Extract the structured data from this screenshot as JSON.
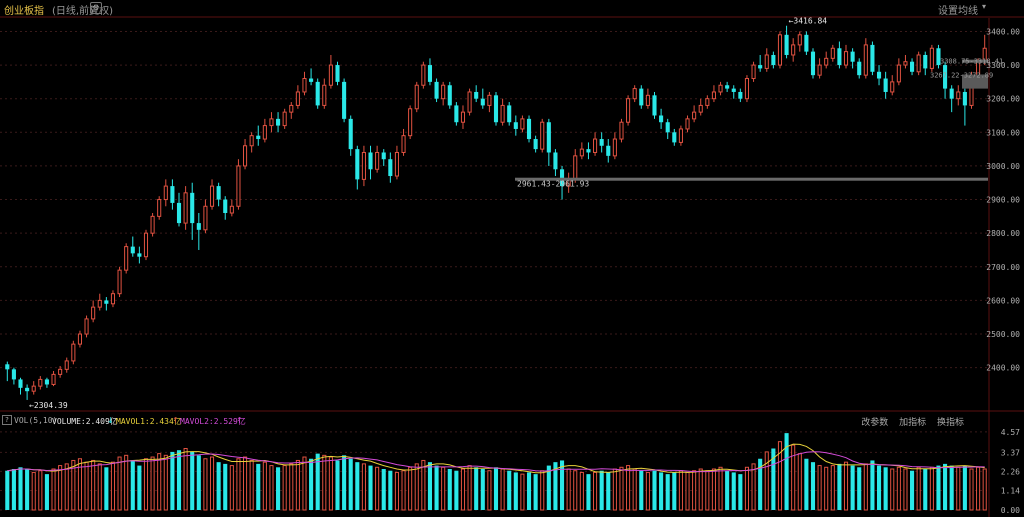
{
  "header": {
    "title": "创业板指",
    "subtitle": "(日线,前复权)",
    "ma_settings_label": "设置均线",
    "dropdown_glyph": "▾",
    "gear_glyph": "⚙"
  },
  "price_axis": {
    "ticks": [
      "3400.00",
      "3300.00",
      "3200.00",
      "3100.00",
      "3000.00",
      "2900.00",
      "2800.00",
      "2700.00",
      "2600.00",
      "2500.00",
      "2400.00"
    ]
  },
  "annotations": {
    "high": "3416.84",
    "low": "2304.39",
    "range_mid": "2961.43-2961.93",
    "range_right_1": "3308.75-3318.41",
    "range_right_2": "3272.89",
    "range_right_2_prefix": "3267.22"
  },
  "volume_panel": {
    "qmark": "?",
    "label": "VOL(5,10)",
    "volume_text": "VOLUME:2.409亿",
    "volume_arrow": "↓",
    "mavol1_text": "MAVOL1:2.434亿",
    "mavol1_arrow": "↑",
    "mavol2_text": "MAVOL2:2.529亿",
    "mavol2_arrow": "↑",
    "right_buttons": [
      "改参数",
      "加指标",
      "换指标"
    ],
    "ticks": [
      "4.57",
      "3.37",
      "2.26",
      "1.14",
      "0.00"
    ]
  },
  "colors": {
    "up": "#e15241",
    "down": "#2ae8e8",
    "mavol1": "#e8d23a",
    "mavol2": "#d24bd8",
    "grid": "#3a1a1a",
    "title": "#e8c44a"
  },
  "chart_data": {
    "type": "candlestick",
    "ylim": [
      2280,
      3440
    ],
    "vol_ylim": [
      0,
      4.8
    ],
    "candles": [
      [
        2410,
        2395,
        2418,
        2360,
        2.3
      ],
      [
        2395,
        2365,
        2400,
        2350,
        2.4
      ],
      [
        2365,
        2340,
        2370,
        2320,
        2.5
      ],
      [
        2340,
        2330,
        2350,
        2304,
        2.4
      ],
      [
        2330,
        2345,
        2360,
        2320,
        2.2
      ],
      [
        2345,
        2365,
        2375,
        2335,
        2.3
      ],
      [
        2365,
        2350,
        2370,
        2340,
        2.1
      ],
      [
        2350,
        2380,
        2390,
        2345,
        2.4
      ],
      [
        2380,
        2395,
        2405,
        2370,
        2.6
      ],
      [
        2395,
        2420,
        2430,
        2385,
        2.7
      ],
      [
        2420,
        2470,
        2480,
        2410,
        2.9
      ],
      [
        2470,
        2500,
        2510,
        2460,
        3.0
      ],
      [
        2500,
        2545,
        2555,
        2490,
        2.8
      ],
      [
        2545,
        2580,
        2600,
        2535,
        2.9
      ],
      [
        2580,
        2600,
        2620,
        2570,
        2.7
      ],
      [
        2600,
        2590,
        2610,
        2570,
        2.5
      ],
      [
        2590,
        2620,
        2630,
        2580,
        2.8
      ],
      [
        2620,
        2690,
        2700,
        2610,
        3.1
      ],
      [
        2690,
        2760,
        2770,
        2680,
        3.2
      ],
      [
        2760,
        2740,
        2790,
        2730,
        2.9
      ],
      [
        2740,
        2730,
        2760,
        2710,
        2.6
      ],
      [
        2730,
        2800,
        2810,
        2720,
        3.0
      ],
      [
        2800,
        2850,
        2860,
        2790,
        3.1
      ],
      [
        2850,
        2900,
        2910,
        2840,
        3.3
      ],
      [
        2900,
        2940,
        2960,
        2880,
        3.2
      ],
      [
        2940,
        2890,
        2960,
        2870,
        3.4
      ],
      [
        2890,
        2830,
        2920,
        2820,
        3.5
      ],
      [
        2830,
        2920,
        2940,
        2810,
        3.6
      ],
      [
        2920,
        2830,
        2950,
        2780,
        3.4
      ],
      [
        2830,
        2810,
        2860,
        2750,
        3.2
      ],
      [
        2810,
        2880,
        2900,
        2800,
        3.0
      ],
      [
        2880,
        2940,
        2960,
        2870,
        3.1
      ],
      [
        2940,
        2900,
        2950,
        2880,
        2.8
      ],
      [
        2900,
        2860,
        2910,
        2840,
        2.7
      ],
      [
        2860,
        2880,
        2900,
        2850,
        2.6
      ],
      [
        2880,
        3000,
        3020,
        2870,
        3.0
      ],
      [
        3000,
        3060,
        3080,
        2990,
        3.1
      ],
      [
        3060,
        3090,
        3100,
        3040,
        2.9
      ],
      [
        3090,
        3080,
        3120,
        3060,
        2.7
      ],
      [
        3080,
        3120,
        3140,
        3070,
        2.8
      ],
      [
        3120,
        3140,
        3160,
        3100,
        2.6
      ],
      [
        3140,
        3120,
        3160,
        3100,
        2.5
      ],
      [
        3120,
        3160,
        3170,
        3110,
        2.6
      ],
      [
        3160,
        3180,
        3190,
        3140,
        2.7
      ],
      [
        3180,
        3220,
        3240,
        3170,
        2.9
      ],
      [
        3220,
        3260,
        3280,
        3210,
        3.1
      ],
      [
        3260,
        3250,
        3290,
        3240,
        3.0
      ],
      [
        3250,
        3180,
        3260,
        3170,
        3.3
      ],
      [
        3180,
        3240,
        3260,
        3170,
        3.2
      ],
      [
        3240,
        3300,
        3330,
        3230,
        3.1
      ],
      [
        3300,
        3250,
        3310,
        3240,
        2.9
      ],
      [
        3250,
        3140,
        3260,
        3130,
        3.2
      ],
      [
        3140,
        3050,
        3150,
        3030,
        3.0
      ],
      [
        3050,
        2960,
        3060,
        2930,
        2.8
      ],
      [
        2960,
        3040,
        3060,
        2940,
        2.7
      ],
      [
        3040,
        2990,
        3060,
        2960,
        2.6
      ],
      [
        2990,
        3040,
        3060,
        2980,
        2.5
      ],
      [
        3040,
        3020,
        3050,
        3000,
        2.4
      ],
      [
        3020,
        2970,
        3040,
        2950,
        2.3
      ],
      [
        2970,
        3040,
        3060,
        2960,
        2.2
      ],
      [
        3040,
        3090,
        3110,
        3030,
        2.3
      ],
      [
        3090,
        3170,
        3180,
        3080,
        2.5
      ],
      [
        3170,
        3240,
        3250,
        3160,
        2.7
      ],
      [
        3240,
        3300,
        3310,
        3230,
        2.9
      ],
      [
        3300,
        3250,
        3320,
        3240,
        2.8
      ],
      [
        3250,
        3200,
        3260,
        3190,
        2.6
      ],
      [
        3200,
        3240,
        3250,
        3180,
        2.5
      ],
      [
        3240,
        3180,
        3250,
        3170,
        2.4
      ],
      [
        3180,
        3130,
        3190,
        3120,
        2.3
      ],
      [
        3130,
        3160,
        3180,
        3110,
        2.4
      ],
      [
        3160,
        3220,
        3230,
        3150,
        2.6
      ],
      [
        3220,
        3200,
        3240,
        3190,
        2.5
      ],
      [
        3200,
        3180,
        3230,
        3170,
        2.4
      ],
      [
        3180,
        3210,
        3220,
        3160,
        2.3
      ],
      [
        3210,
        3130,
        3220,
        3120,
        2.5
      ],
      [
        3130,
        3180,
        3200,
        3120,
        2.4
      ],
      [
        3180,
        3130,
        3190,
        3120,
        2.3
      ],
      [
        3130,
        3110,
        3150,
        3090,
        2.2
      ],
      [
        3110,
        3140,
        3150,
        3100,
        2.1
      ],
      [
        3140,
        3080,
        3150,
        3070,
        2.2
      ],
      [
        3080,
        3050,
        3090,
        3040,
        2.1
      ],
      [
        3050,
        3130,
        3140,
        3040,
        2.3
      ],
      [
        3130,
        3040,
        3140,
        3000,
        2.6
      ],
      [
        3040,
        2990,
        3050,
        2970,
        2.8
      ],
      [
        2990,
        2940,
        3000,
        2900,
        2.9
      ],
      [
        2940,
        2960,
        2980,
        2920,
        2.4
      ],
      [
        2960,
        3030,
        3050,
        2950,
        2.3
      ],
      [
        3030,
        3050,
        3070,
        3020,
        2.2
      ],
      [
        3050,
        3040,
        3070,
        3020,
        2.1
      ],
      [
        3040,
        3080,
        3100,
        3030,
        2.2
      ],
      [
        3080,
        3060,
        3100,
        3040,
        2.3
      ],
      [
        3060,
        3030,
        3080,
        3010,
        2.2
      ],
      [
        3030,
        3080,
        3100,
        3020,
        2.4
      ],
      [
        3080,
        3130,
        3140,
        3070,
        2.5
      ],
      [
        3130,
        3200,
        3210,
        3120,
        2.6
      ],
      [
        3200,
        3230,
        3240,
        3190,
        2.4
      ],
      [
        3230,
        3180,
        3240,
        3170,
        2.3
      ],
      [
        3180,
        3210,
        3230,
        3170,
        2.2
      ],
      [
        3210,
        3150,
        3220,
        3140,
        2.3
      ],
      [
        3150,
        3130,
        3170,
        3110,
        2.2
      ],
      [
        3130,
        3100,
        3140,
        3080,
        2.1
      ],
      [
        3100,
        3070,
        3110,
        3060,
        2.2
      ],
      [
        3070,
        3110,
        3120,
        3060,
        2.3
      ],
      [
        3110,
        3140,
        3150,
        3100,
        2.2
      ],
      [
        3140,
        3160,
        3180,
        3130,
        2.3
      ],
      [
        3160,
        3180,
        3200,
        3150,
        2.4
      ],
      [
        3180,
        3200,
        3210,
        3170,
        2.3
      ],
      [
        3200,
        3220,
        3240,
        3190,
        2.4
      ],
      [
        3220,
        3240,
        3250,
        3210,
        2.5
      ],
      [
        3240,
        3230,
        3250,
        3220,
        2.3
      ],
      [
        3230,
        3220,
        3240,
        3200,
        2.2
      ],
      [
        3220,
        3200,
        3230,
        3190,
        2.1
      ],
      [
        3200,
        3260,
        3270,
        3190,
        2.5
      ],
      [
        3260,
        3300,
        3310,
        3250,
        2.7
      ],
      [
        3300,
        3290,
        3330,
        3280,
        3.0
      ],
      [
        3290,
        3330,
        3350,
        3280,
        3.4
      ],
      [
        3330,
        3300,
        3340,
        3290,
        3.6
      ],
      [
        3300,
        3390,
        3400,
        3290,
        4.0
      ],
      [
        3390,
        3330,
        3417,
        3320,
        4.5
      ],
      [
        3330,
        3360,
        3380,
        3310,
        3.8
      ],
      [
        3360,
        3390,
        3400,
        3340,
        3.3
      ],
      [
        3390,
        3340,
        3400,
        3330,
        3.0
      ],
      [
        3340,
        3270,
        3350,
        3260,
        2.8
      ],
      [
        3270,
        3300,
        3320,
        3260,
        2.6
      ],
      [
        3300,
        3320,
        3340,
        3290,
        2.5
      ],
      [
        3320,
        3350,
        3360,
        3310,
        2.6
      ],
      [
        3350,
        3300,
        3370,
        3290,
        2.7
      ],
      [
        3300,
        3340,
        3360,
        3290,
        2.8
      ],
      [
        3340,
        3310,
        3350,
        3290,
        2.6
      ],
      [
        3310,
        3270,
        3320,
        3260,
        2.5
      ],
      [
        3270,
        3360,
        3380,
        3260,
        2.7
      ],
      [
        3360,
        3280,
        3370,
        3270,
        2.9
      ],
      [
        3280,
        3260,
        3300,
        3240,
        2.6
      ],
      [
        3260,
        3220,
        3280,
        3200,
        2.5
      ],
      [
        3220,
        3250,
        3270,
        3210,
        2.4
      ],
      [
        3250,
        3300,
        3320,
        3240,
        2.5
      ],
      [
        3300,
        3310,
        3330,
        3290,
        2.4
      ],
      [
        3310,
        3280,
        3320,
        3270,
        2.3
      ],
      [
        3280,
        3330,
        3340,
        3270,
        2.5
      ],
      [
        3330,
        3290,
        3340,
        3270,
        2.4
      ],
      [
        3290,
        3350,
        3360,
        3280,
        2.5
      ],
      [
        3350,
        3300,
        3360,
        3290,
        2.6
      ],
      [
        3300,
        3230,
        3310,
        3200,
        2.7
      ],
      [
        3230,
        3200,
        3240,
        3160,
        2.6
      ],
      [
        3200,
        3220,
        3240,
        3180,
        2.5
      ],
      [
        3220,
        3180,
        3230,
        3120,
        2.6
      ],
      [
        3180,
        3270,
        3280,
        3170,
        2.4
      ],
      [
        3270,
        3310,
        3320,
        3260,
        2.5
      ],
      [
        3310,
        3350,
        3390,
        3300,
        2.4
      ]
    ]
  }
}
